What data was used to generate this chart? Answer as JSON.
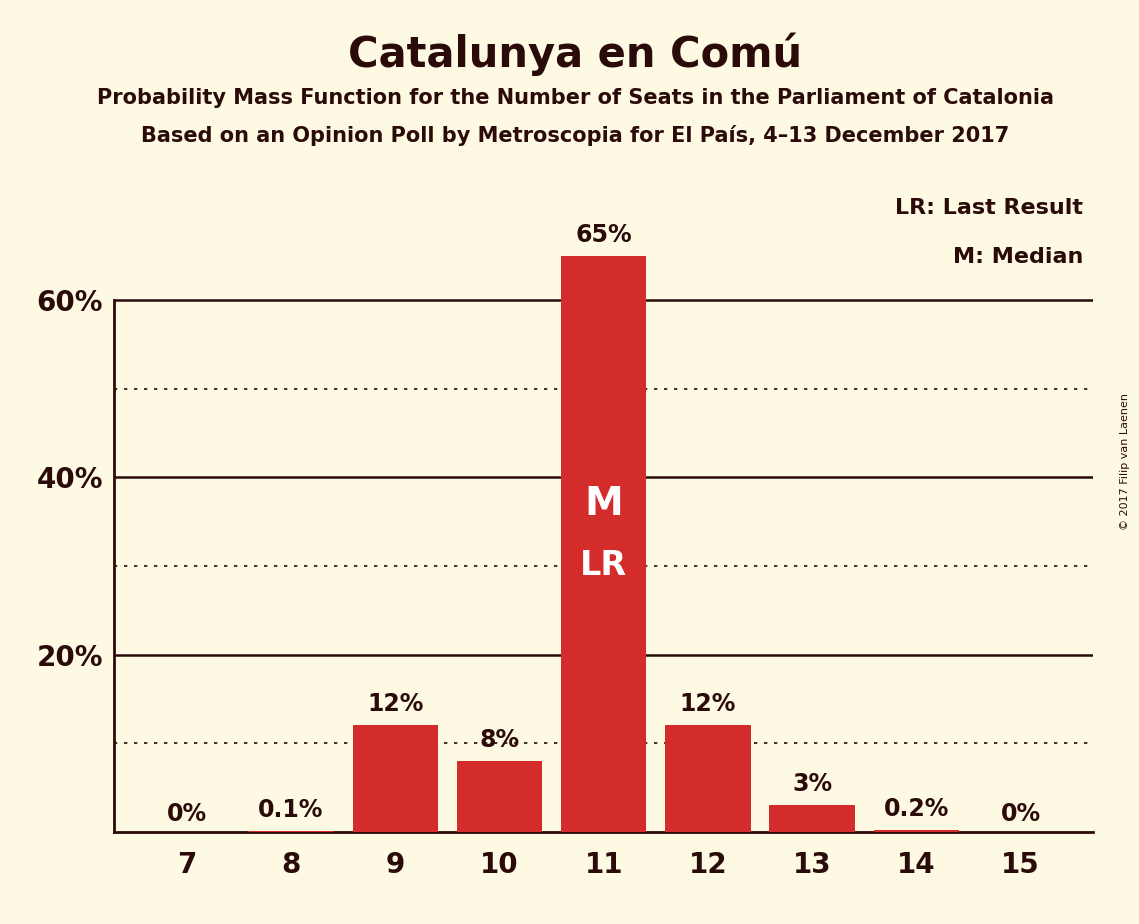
{
  "title": "Catalunya en Comú",
  "subtitle1": "Probability Mass Function for the Number of Seats in the Parliament of Catalonia",
  "subtitle2": "Based on an Opinion Poll by Metroscopia for El País, 4–13 December 2017",
  "copyright": "© 2017 Filip van Laenen",
  "legend_lr": "LR: Last Result",
  "legend_m": "M: Median",
  "categories": [
    7,
    8,
    9,
    10,
    11,
    12,
    13,
    14,
    15
  ],
  "values": [
    0.0,
    0.1,
    12.0,
    8.0,
    65.0,
    12.0,
    3.0,
    0.2,
    0.0
  ],
  "labels": [
    "0%",
    "0.1%",
    "12%",
    "8%",
    "65%",
    "12%",
    "3%",
    "0.2%",
    "0%"
  ],
  "bar_color": "#d42b2b",
  "background_color": "#fdf9e3",
  "text_color": "#2b0a0a",
  "grid_color": "#2b0a0a",
  "ylim": [
    0,
    72
  ],
  "solid_ticks": [
    20,
    40,
    60
  ],
  "dotted_ticks": [
    10,
    30,
    50
  ],
  "median_seat": 11,
  "lr_seat": 11,
  "M_label": "M",
  "LR_label": "LR",
  "annotation_color": "#ffffff",
  "label_fontsize": 17,
  "tick_fontsize": 20,
  "title_fontsize": 30,
  "subtitle_fontsize": 15,
  "copyright_fontsize": 8,
  "legend_fontsize": 16,
  "annotation_fontsize_M": 28,
  "annotation_fontsize_LR": 24,
  "bar_width": 0.82,
  "xlim": [
    6.3,
    15.7
  ]
}
